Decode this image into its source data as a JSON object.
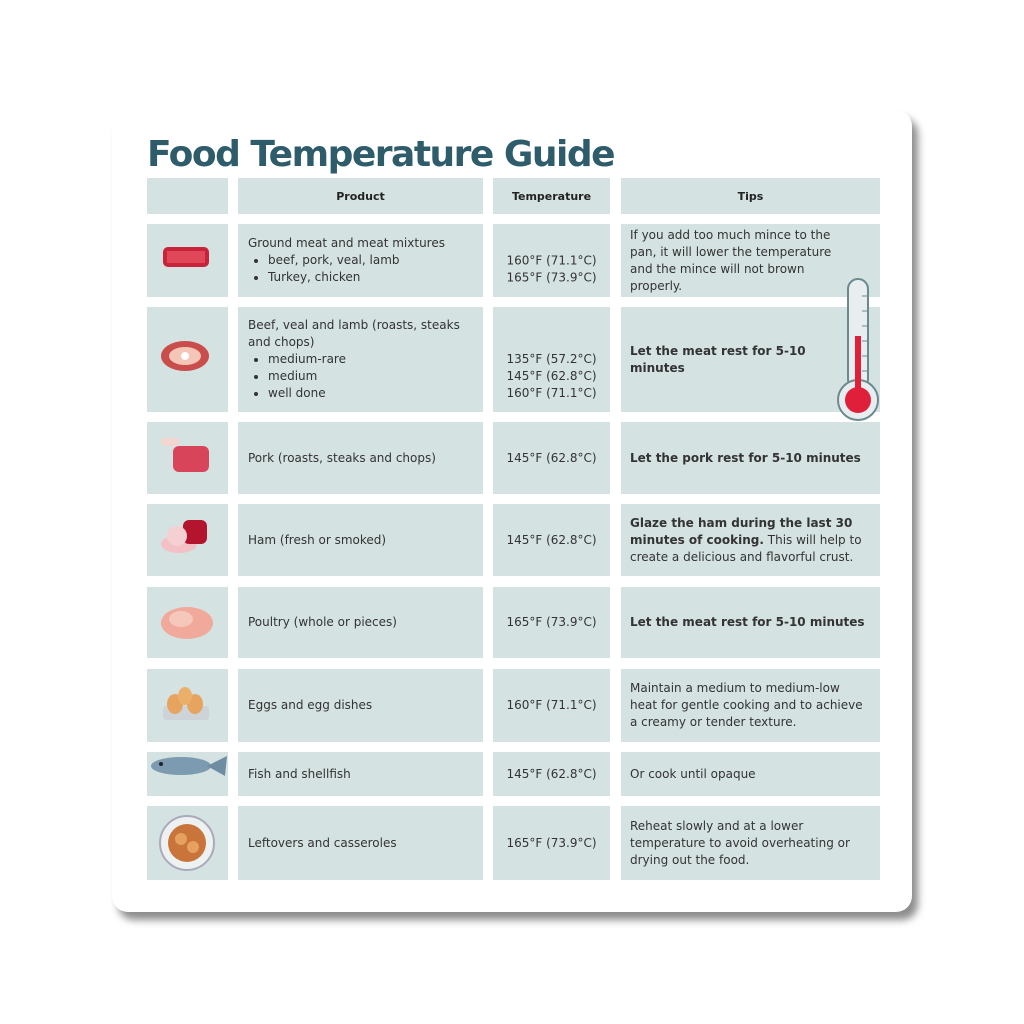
{
  "title": "Food Temperature Guide",
  "table": {
    "header": [
      "Product",
      "Temperature",
      "Tips"
    ],
    "rows": [
      {
        "product": {
          "title": "Ground meat and meat mixtures",
          "bullets": [
            "beef, pork, veal, lamb",
            "Turkey, chicken"
          ]
        },
        "temperatures": [
          "160°F (71.1°C)",
          "165°F (73.9°C)"
        ],
        "tips": [
          {
            "text": "If you add too much mince to the pan, it will lower the temperature and the mince will not brown properly.",
            "bold": false
          }
        ]
      },
      {
        "product": {
          "title": "Beef, veal and lamb (roasts, steaks and chops)",
          "bullets": [
            "medium-rare",
            "medium",
            "well done"
          ]
        },
        "temperatures": [
          "135°F (57.2°C)",
          "145°F (62.8°C)",
          "160°F (71.1°C)"
        ],
        "tips": [
          {
            "text": "Let the meat rest for 5-10 minutes",
            "bold": true
          }
        ]
      },
      {
        "product": {
          "title": "Pork (roasts, steaks and chops)",
          "bullets": []
        },
        "temperatures": [
          "145°F (62.8°C)"
        ],
        "tips": [
          {
            "text": "Let the pork rest for 5-10 minutes",
            "bold": true
          }
        ]
      },
      {
        "product": {
          "title": "Ham (fresh or smoked)",
          "bullets": []
        },
        "temperatures": [
          "145°F (62.8°C)"
        ],
        "tips": [
          {
            "text": "Glaze the ham during the last 30 minutes of cooking.",
            "bold": true
          },
          {
            "text": "This will help to create a delicious and flavorful crust.",
            "bold": false
          }
        ]
      },
      {
        "product": {
          "title": "Poultry (whole or pieces)",
          "bullets": []
        },
        "temperatures": [
          "165°F (73.9°C)"
        ],
        "tips": [
          {
            "text": "Let the meat rest for 5-10 minutes",
            "bold": true
          }
        ]
      },
      {
        "product": {
          "title": "Eggs and egg dishes",
          "bullets": []
        },
        "temperatures": [
          "160°F (71.1°C)"
        ],
        "tips": [
          {
            "text": "Maintain a medium to medium-low heat for gentle cooking and to achieve a creamy or tender texture.",
            "bold": false
          }
        ]
      },
      {
        "product": {
          "title": "Fish and shellfish",
          "bullets": []
        },
        "temperatures": [
          "145°F (62.8°C)"
        ],
        "tips": [
          {
            "text": "Or cook until opaque",
            "bold": false
          }
        ]
      },
      {
        "product": {
          "title": "Leftovers and casseroles",
          "bullets": []
        },
        "temperatures": [
          "165°F (73.9°C)"
        ],
        "tips": [
          {
            "text": "Reheat slowly and at a lower temperature to avoid overheating or drying out the food.",
            "bold": false
          }
        ]
      }
    ]
  }
}
